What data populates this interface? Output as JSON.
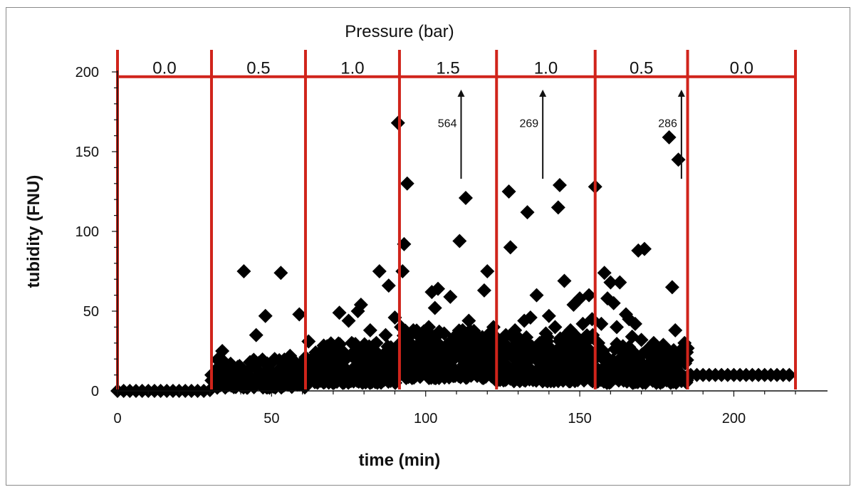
{
  "chart_data": {
    "type": "scatter",
    "title": "Pressure (bar)",
    "xlabel": "time (min)",
    "ylabel": "tubidity (FNU)",
    "xlim": [
      0,
      220
    ],
    "ylim": [
      0,
      200
    ],
    "xticks": [
      0,
      50,
      100,
      150,
      200
    ],
    "yticks": [
      0,
      50,
      100,
      150,
      200
    ],
    "grid": false,
    "legend": "none",
    "marker_color": "#000000",
    "line_color": "#d0241b",
    "pressure_level_line_y": 197,
    "pressure_segments": [
      {
        "from": 0,
        "to": 30.5,
        "label": "0.0"
      },
      {
        "from": 30.5,
        "to": 61,
        "label": "0.5"
      },
      {
        "from": 61,
        "to": 91.5,
        "label": "1.0"
      },
      {
        "from": 91.5,
        "to": 123,
        "label": "1.5"
      },
      {
        "from": 123,
        "to": 155,
        "label": "1.0"
      },
      {
        "from": 155,
        "to": 185,
        "label": "0.5"
      },
      {
        "from": 185,
        "to": 220,
        "label": "0.0"
      }
    ],
    "offscale_annotations": [
      {
        "x": 111.5,
        "label": "564"
      },
      {
        "x": 138,
        "label": "269"
      },
      {
        "x": 183,
        "label": "286"
      }
    ],
    "series": [
      {
        "points": [
          [
            0,
            0
          ],
          [
            2,
            0
          ],
          [
            4,
            0
          ],
          [
            6,
            0
          ],
          [
            8,
            0
          ],
          [
            10,
            0
          ],
          [
            12,
            0
          ],
          [
            14,
            0
          ],
          [
            16,
            0
          ],
          [
            18,
            0
          ],
          [
            20,
            0
          ],
          [
            22,
            0
          ],
          [
            24,
            0
          ],
          [
            26,
            0
          ],
          [
            28,
            0
          ],
          [
            30,
            0.5
          ],
          [
            30.5,
            10
          ],
          [
            32,
            7
          ],
          [
            33,
            20
          ],
          [
            34,
            25
          ],
          [
            35,
            3
          ],
          [
            36,
            12
          ],
          [
            37,
            8
          ],
          [
            38,
            5
          ],
          [
            39,
            15
          ],
          [
            40,
            10
          ],
          [
            41,
            75
          ],
          [
            42,
            2
          ],
          [
            43,
            18
          ],
          [
            44,
            6
          ],
          [
            45,
            35
          ],
          [
            46,
            12
          ],
          [
            47,
            3
          ],
          [
            48,
            47
          ],
          [
            49,
            14
          ],
          [
            50,
            8
          ],
          [
            51,
            20
          ],
          [
            52,
            5
          ],
          [
            53,
            74
          ],
          [
            54,
            15
          ],
          [
            55,
            10
          ],
          [
            56,
            22
          ],
          [
            57,
            4
          ],
          [
            58,
            13
          ],
          [
            59,
            48
          ],
          [
            60,
            9
          ],
          [
            61,
            18
          ],
          [
            62,
            31
          ],
          [
            63,
            12
          ],
          [
            64,
            22
          ],
          [
            65,
            15
          ],
          [
            66,
            24
          ],
          [
            67,
            10
          ],
          [
            68,
            28
          ],
          [
            69,
            17
          ],
          [
            70,
            20
          ],
          [
            71,
            8
          ],
          [
            72,
            49
          ],
          [
            73,
            25
          ],
          [
            74,
            14
          ],
          [
            75,
            44
          ],
          [
            76,
            30
          ],
          [
            77,
            20
          ],
          [
            78,
            50
          ],
          [
            79,
            54
          ],
          [
            80,
            12
          ],
          [
            81,
            26
          ],
          [
            82,
            38
          ],
          [
            83,
            18
          ],
          [
            84,
            30
          ],
          [
            85,
            75
          ],
          [
            86,
            22
          ],
          [
            87,
            35
          ],
          [
            88,
            66
          ],
          [
            89,
            20
          ],
          [
            90,
            46
          ],
          [
            91,
            168
          ],
          [
            92,
            40
          ],
          [
            92.5,
            75
          ],
          [
            93,
            92
          ],
          [
            94,
            130
          ],
          [
            95,
            30
          ],
          [
            96,
            38
          ],
          [
            97,
            20
          ],
          [
            98,
            34
          ],
          [
            99,
            25
          ],
          [
            100,
            15
          ],
          [
            101,
            40
          ],
          [
            102,
            62
          ],
          [
            103,
            52
          ],
          [
            104,
            64
          ],
          [
            105,
            28
          ],
          [
            106,
            36
          ],
          [
            107,
            18
          ],
          [
            108,
            59
          ],
          [
            109,
            32
          ],
          [
            110,
            24
          ],
          [
            111,
            94
          ],
          [
            112,
            38
          ],
          [
            113,
            121
          ],
          [
            114,
            44
          ],
          [
            115,
            28
          ],
          [
            116,
            22
          ],
          [
            117,
            34
          ],
          [
            118,
            16
          ],
          [
            119,
            63
          ],
          [
            120,
            75
          ],
          [
            121,
            30
          ],
          [
            122,
            40
          ],
          [
            123,
            20
          ],
          [
            124,
            30
          ],
          [
            125,
            18
          ],
          [
            126,
            35
          ],
          [
            127,
            125
          ],
          [
            127.5,
            90
          ],
          [
            128,
            25
          ],
          [
            129,
            38
          ],
          [
            130,
            16
          ],
          [
            131,
            28
          ],
          [
            132,
            44
          ],
          [
            133,
            112
          ],
          [
            134,
            46
          ],
          [
            135,
            22
          ],
          [
            136,
            60
          ],
          [
            137,
            30
          ],
          [
            138,
            18
          ],
          [
            139,
            36
          ],
          [
            140,
            47
          ],
          [
            141,
            25
          ],
          [
            142,
            40
          ],
          [
            143,
            115
          ],
          [
            143.5,
            129
          ],
          [
            144,
            28
          ],
          [
            145,
            69
          ],
          [
            146,
            22
          ],
          [
            147,
            38
          ],
          [
            148,
            54
          ],
          [
            149,
            30
          ],
          [
            150,
            58
          ],
          [
            151,
            42
          ],
          [
            152,
            20
          ],
          [
            153,
            60
          ],
          [
            154,
            45
          ],
          [
            155,
            128
          ],
          [
            156,
            30
          ],
          [
            157,
            42
          ],
          [
            158,
            74
          ],
          [
            159,
            58
          ],
          [
            160,
            68
          ],
          [
            161,
            55
          ],
          [
            162,
            40
          ],
          [
            163,
            68
          ],
          [
            164,
            28
          ],
          [
            165,
            48
          ],
          [
            166,
            45
          ],
          [
            167,
            34
          ],
          [
            168,
            42
          ],
          [
            169,
            88
          ],
          [
            170,
            32
          ],
          [
            171,
            89
          ],
          [
            172,
            26
          ],
          [
            173,
            22
          ],
          [
            174,
            30
          ],
          [
            175,
            28
          ],
          [
            176,
            24
          ],
          [
            177,
            18
          ],
          [
            178,
            20
          ],
          [
            179,
            159
          ],
          [
            180,
            65
          ],
          [
            181,
            38
          ],
          [
            182,
            145
          ],
          [
            183,
            26
          ],
          [
            184,
            30
          ],
          [
            186,
            10
          ],
          [
            188,
            10
          ],
          [
            190,
            10
          ],
          [
            192,
            10
          ],
          [
            194,
            10
          ],
          [
            196,
            10
          ],
          [
            198,
            10
          ],
          [
            200,
            10
          ],
          [
            202,
            10
          ],
          [
            204,
            10
          ],
          [
            206,
            10
          ],
          [
            208,
            10
          ],
          [
            210,
            10
          ],
          [
            212,
            10
          ],
          [
            214,
            10
          ],
          [
            216,
            10
          ],
          [
            218,
            10
          ]
        ]
      }
    ]
  }
}
